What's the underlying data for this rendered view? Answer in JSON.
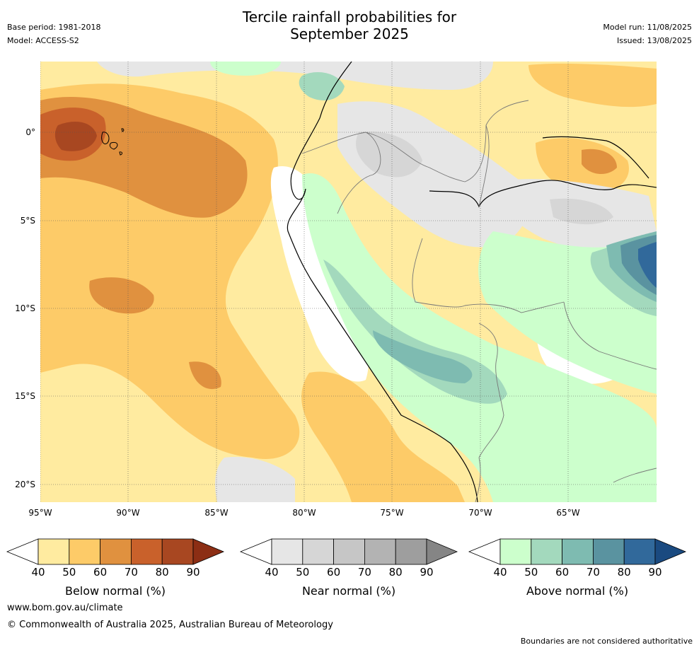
{
  "header": {
    "title_line1": "Tercile rainfall probabilities for",
    "title_line2": "September 2025",
    "base_period": "Base period: 1981-2018",
    "model": "Model: ACCESS-S2",
    "model_run": "Model run: 11/08/2025",
    "issued": "Issued: 13/08/2025"
  },
  "map": {
    "lat_labels": [
      "0°",
      "5°S",
      "10°S",
      "15°S",
      "20°S"
    ],
    "lon_labels": [
      "95°W",
      "90°W",
      "85°W",
      "80°W",
      "75°W",
      "70°W",
      "65°W"
    ]
  },
  "colorbars": [
    {
      "name": "below",
      "title": "Below normal (%)",
      "ticks": [
        "40",
        "50",
        "60",
        "70",
        "80",
        "90"
      ],
      "colors": [
        "#ffeba0",
        "#fdcb68",
        "#e0913f",
        "#c9612b",
        "#a84721",
        "#8c2e14"
      ]
    },
    {
      "name": "near",
      "title": "Near normal (%)",
      "ticks": [
        "40",
        "50",
        "60",
        "70",
        "80",
        "90"
      ],
      "colors": [
        "#e6e6e6",
        "#d6d6d6",
        "#c6c6c6",
        "#b3b3b3",
        "#9e9e9e",
        "#858585"
      ]
    },
    {
      "name": "above",
      "title": "Above normal (%)",
      "ticks": [
        "40",
        "50",
        "60",
        "70",
        "80",
        "90"
      ],
      "colors": [
        "#ccffcc",
        "#a3d9bd",
        "#7ebbb1",
        "#5a93a0",
        "#31699b",
        "#1a4a80"
      ]
    }
  ],
  "footer": {
    "website": "www.bom.gov.au/climate",
    "copyright": "© Commonwealth of Australia 2025, Australian Bureau of Meteorology",
    "disclaimer": "Boundaries are not considered authoritative"
  }
}
